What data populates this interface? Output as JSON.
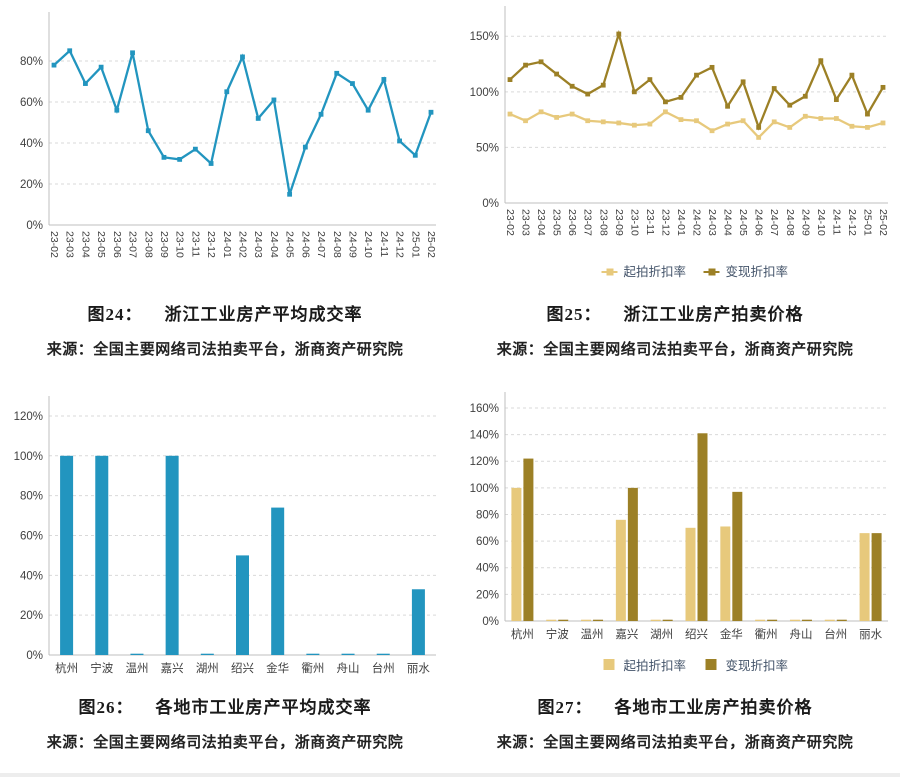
{
  "chart_data": [
    {
      "type": "line",
      "fig_label": "图24：",
      "title": "浙江工业房产平均成交率",
      "source": "来源：全国主要网络司法拍卖平台，浙商资产研究院",
      "categories": [
        "23-02",
        "23-03",
        "23-04",
        "23-05",
        "23-06",
        "23-07",
        "23-08",
        "23-09",
        "23-10",
        "23-11",
        "23-12",
        "24-01",
        "24-02",
        "24-03",
        "24-04",
        "24-05",
        "24-06",
        "24-07",
        "24-08",
        "24-09",
        "24-10",
        "24-11",
        "24-12",
        "25-01",
        "25-02"
      ],
      "series": [
        {
          "name": "",
          "color": "#2295BF",
          "values": [
            78,
            85,
            69,
            77,
            56,
            84,
            46,
            33,
            32,
            37,
            30,
            65,
            82,
            52,
            61,
            15,
            38,
            54,
            74,
            69,
            56,
            71,
            41,
            34,
            55
          ]
        }
      ],
      "ylim": [
        0,
        100
      ],
      "yticks": [
        0,
        20,
        40,
        60,
        80
      ],
      "ytick_suffix": "%",
      "grid": "dashed-horizontal",
      "legend": "none",
      "xlabel": "",
      "ylabel": ""
    },
    {
      "type": "line",
      "fig_label": "图25：",
      "title": "浙江工业房产拍卖价格",
      "source": "来源：全国主要网络司法拍卖平台，浙商资产研究院",
      "categories": [
        "23-02",
        "23-03",
        "23-04",
        "23-05",
        "23-06",
        "23-07",
        "23-08",
        "23-09",
        "23-10",
        "23-11",
        "23-12",
        "24-01",
        "24-02",
        "24-03",
        "24-04",
        "24-05",
        "24-06",
        "24-07",
        "24-08",
        "24-09",
        "24-10",
        "24-11",
        "24-12",
        "25-01",
        "25-02"
      ],
      "series": [
        {
          "name": "起拍折扣率",
          "color": "#E7C97C",
          "values": [
            80,
            74,
            82,
            77,
            80,
            74,
            73,
            72,
            70,
            71,
            82,
            75,
            74,
            65,
            71,
            74,
            59,
            73,
            68,
            78,
            76,
            76,
            69,
            68,
            72
          ]
        },
        {
          "name": "变现折扣率",
          "color": "#9C8026",
          "values": [
            111,
            124,
            127,
            116,
            105,
            98,
            106,
            152,
            100,
            111,
            91,
            95,
            115,
            122,
            87,
            109,
            68,
            103,
            88,
            96,
            128,
            93,
            115,
            80,
            104
          ]
        }
      ],
      "ylim": [
        0,
        170
      ],
      "yticks": [
        0,
        50,
        100,
        150
      ],
      "ytick_suffix": "%",
      "grid": "dashed-horizontal",
      "legend": "bottom",
      "legend_text_color": "#44546A",
      "xlabel": "",
      "ylabel": ""
    },
    {
      "type": "bar",
      "fig_label": "图26：",
      "title": "各地市工业房产平均成交率",
      "source": "来源：全国主要网络司法拍卖平台，浙商资产研究院",
      "categories": [
        "杭州",
        "宁波",
        "温州",
        "嘉兴",
        "湖州",
        "绍兴",
        "金华",
        "衢州",
        "舟山",
        "台州",
        "丽水"
      ],
      "series": [
        {
          "name": "",
          "color": "#2295BF",
          "values": [
            100,
            100,
            0.5,
            100,
            0.5,
            50,
            74,
            0.5,
            0.5,
            0.5,
            33
          ]
        }
      ],
      "ylim": [
        0,
        126
      ],
      "yticks": [
        0,
        20,
        40,
        60,
        80,
        100,
        120
      ],
      "ytick_suffix": "%",
      "grid": "dashed-horizontal",
      "legend": "none",
      "xlabel": "",
      "ylabel": ""
    },
    {
      "type": "bar",
      "fig_label": "图27：",
      "title": "各地市工业房产拍卖价格",
      "source": "来源：全国主要网络司法拍卖平台，浙商资产研究院",
      "categories": [
        "杭州",
        "宁波",
        "温州",
        "嘉兴",
        "湖州",
        "绍兴",
        "金华",
        "衢州",
        "舟山",
        "台州",
        "丽水"
      ],
      "series": [
        {
          "name": "起拍折扣率",
          "color": "#E7C97C",
          "values": [
            100,
            0.5,
            0.5,
            76,
            0.5,
            70,
            71,
            0.5,
            0.5,
            0.5,
            66
          ]
        },
        {
          "name": "变现折扣率",
          "color": "#9C8026",
          "values": [
            122,
            0.5,
            0.5,
            100,
            0.5,
            141,
            97,
            0.5,
            0.5,
            0.5,
            66
          ]
        }
      ],
      "ylim": [
        0,
        166
      ],
      "yticks": [
        0,
        20,
        40,
        60,
        80,
        100,
        120,
        140,
        160
      ],
      "ytick_suffix": "%",
      "grid": "dashed-horizontal",
      "legend": "bottom",
      "legend_text_color": "#44546A",
      "xlabel": "",
      "ylabel": ""
    }
  ],
  "style_colors": {
    "teal_line": "#2295BF",
    "light_gold": "#E7C97C",
    "dark_gold": "#9C8026",
    "tick_label": "#404040",
    "grid_line": "#D9D9D9",
    "axis_line": "#BFBFBF",
    "legend_text": "#44546A"
  }
}
